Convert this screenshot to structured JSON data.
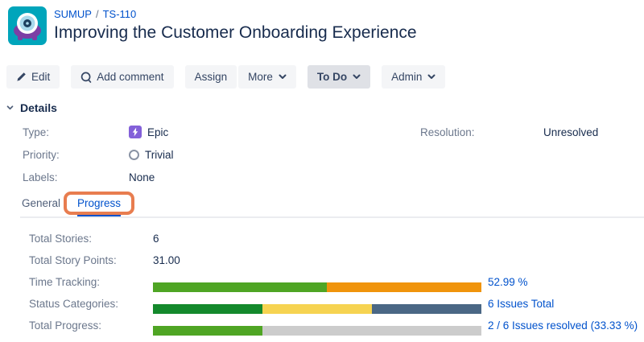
{
  "header": {
    "breadcrumb": {
      "project": "SUMUP",
      "separator": "/",
      "issue_key": "TS-110"
    },
    "title": "Improving the Customer Onboarding Experience"
  },
  "toolbar": {
    "edit_label": "Edit",
    "add_comment_label": "Add comment",
    "assign_label": "Assign",
    "more_label": "More",
    "status_label": "To Do",
    "admin_label": "Admin"
  },
  "details": {
    "title": "Details",
    "type_label": "Type:",
    "type_value": "Epic",
    "priority_label": "Priority:",
    "priority_value": "Trivial",
    "labels_label": "Labels:",
    "labels_value": "None",
    "resolution_label": "Resolution:",
    "resolution_value": "Unresolved"
  },
  "tabs": {
    "general": "General",
    "progress": "Progress"
  },
  "progress_panel": {
    "total_stories_label": "Total Stories:",
    "total_stories_value": "6",
    "total_story_points_label": "Total Story Points:",
    "total_story_points_value": "31.00",
    "time_tracking_label": "Time Tracking:",
    "time_tracking_value": "52.99 %",
    "status_categories_label": "Status Categories:",
    "status_categories_value": "6 Issues Total",
    "total_progress_label": "Total Progress:",
    "total_progress_value": "2 / 6 Issues resolved (33.33 %)"
  },
  "bars": {
    "time_tracking": {
      "segments": [
        {
          "name": "time-spent-segment",
          "percent": 52.99,
          "color": "#4fa524"
        },
        {
          "name": "time-remaining-segment",
          "percent": 47.01,
          "color": "#f0940c"
        }
      ]
    },
    "status_categories": {
      "segments": [
        {
          "name": "done-segment",
          "percent": 33.33,
          "color": "#14892c"
        },
        {
          "name": "in-progress-segment",
          "percent": 33.33,
          "color": "#f6d351"
        },
        {
          "name": "to-do-segment",
          "percent": 33.34,
          "color": "#4a6785"
        }
      ]
    },
    "total_progress": {
      "segments": [
        {
          "name": "resolved-segment",
          "percent": 33.33,
          "color": "#4fa524"
        },
        {
          "name": "unresolved-segment",
          "percent": 66.67,
          "color": "#cccccc"
        }
      ]
    }
  },
  "colors": {
    "link_blue": "#0052cc",
    "annotation_orange": "#e87d4f",
    "epic_purple": "#8360d9",
    "avatar_teal": "#00a5bb",
    "avatar_purple": "#7c3fa5",
    "button_bg": "#f4f5f7",
    "status_button_bg": "#dfe1e6"
  }
}
